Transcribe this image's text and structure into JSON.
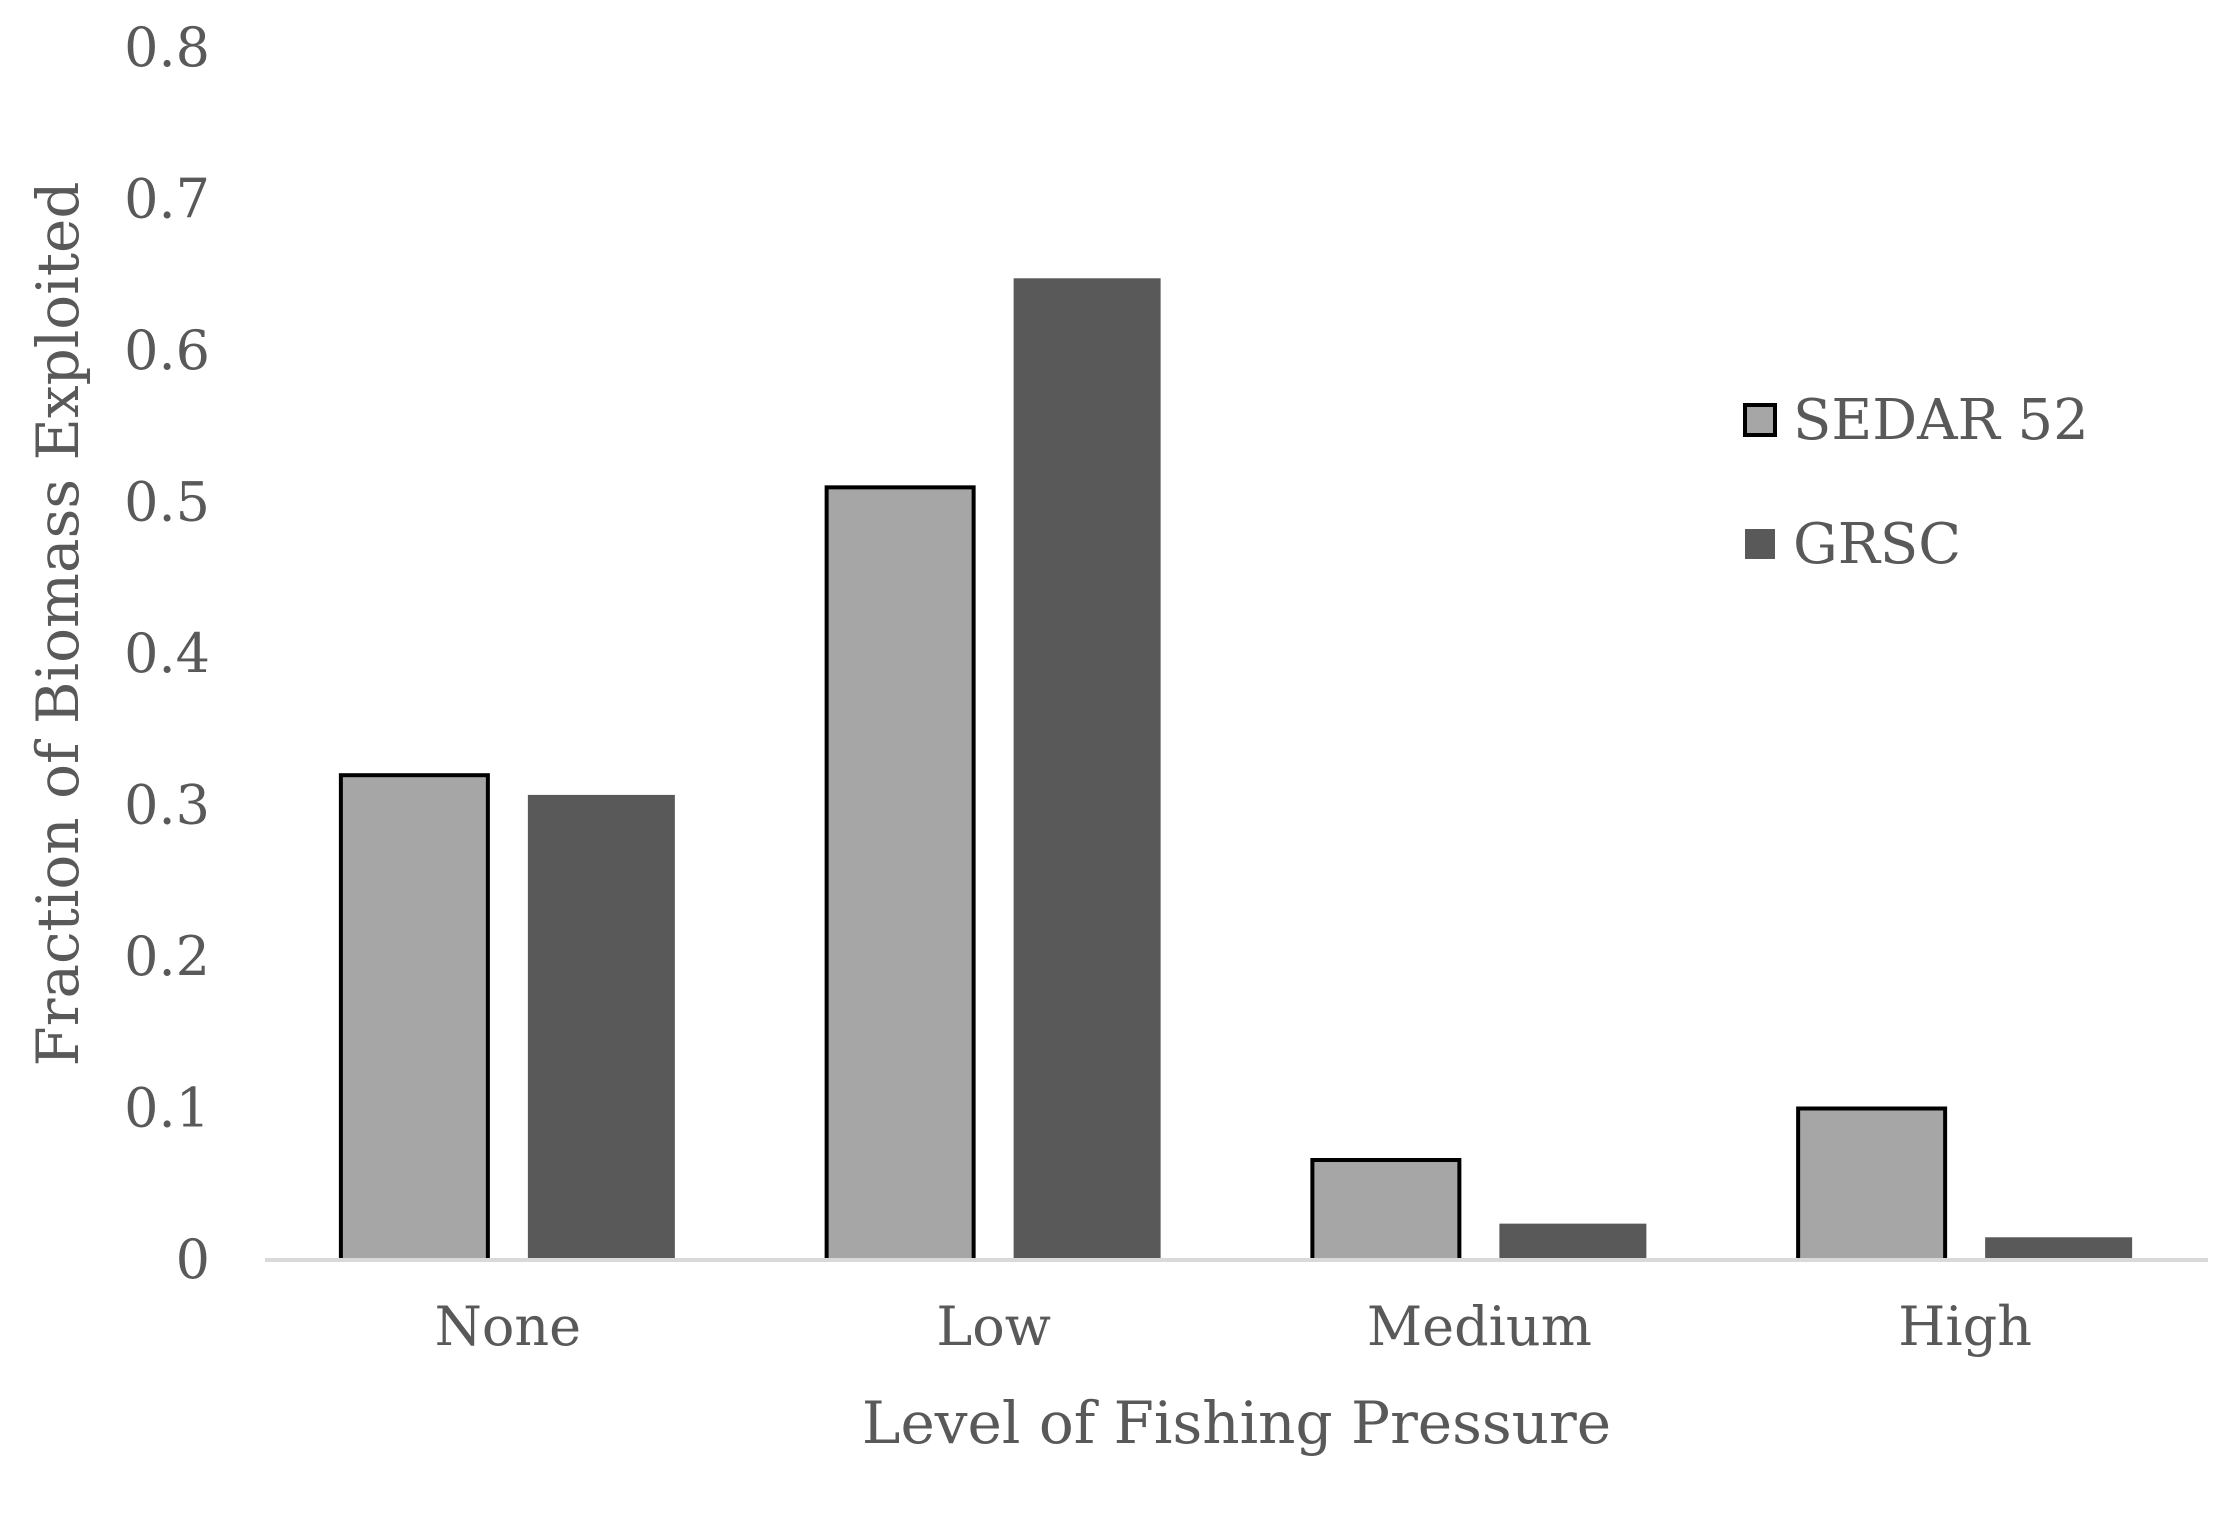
{
  "chart_data": {
    "type": "bar",
    "title": "",
    "xlabel": "Level of Fishing Pressure",
    "ylabel": "Fraction of Biomass Exploited",
    "categories": [
      "None",
      "Low",
      "Medium",
      "High"
    ],
    "series": [
      {
        "name": "SEDAR 52",
        "values": [
          0.32,
          0.51,
          0.066,
          0.1
        ],
        "color": "#a6a6a6",
        "outlined": true
      },
      {
        "name": "GRSC",
        "values": [
          0.307,
          0.648,
          0.024,
          0.015
        ],
        "color": "#595959",
        "outlined": false
      }
    ],
    "ylim": [
      0,
      0.8
    ],
    "yticks": [
      0,
      0.1,
      0.2,
      0.3,
      0.4,
      0.5,
      0.6,
      0.7,
      0.8
    ],
    "ytick_labels": [
      "0",
      "0.1",
      "0.2",
      "0.3",
      "0.4",
      "0.5",
      "0.6",
      "0.7",
      "0.8"
    ],
    "grid": false,
    "legend_position": "right"
  }
}
